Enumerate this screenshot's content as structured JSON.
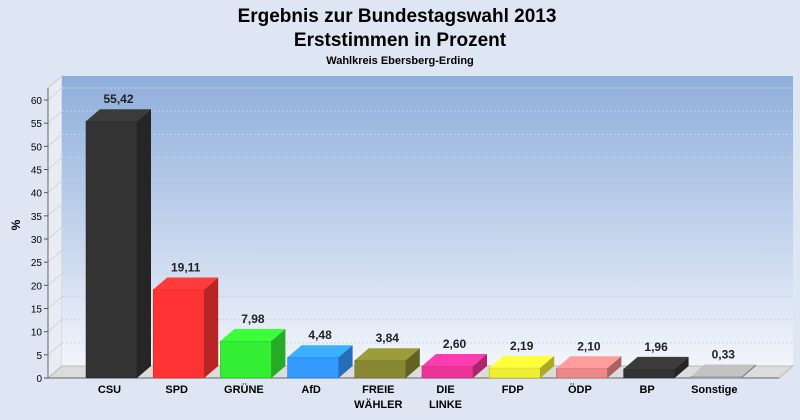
{
  "chart_data": {
    "type": "bar",
    "title": "Ergebnis zur Bundestagswahl 2013",
    "title2": "Erststimmen in Prozent",
    "subtitle": "Wahlkreis Ebersberg-Erding",
    "ylabel": "%",
    "ylim": [
      0,
      60
    ],
    "yticks": [
      "0",
      "5",
      "10",
      "15",
      "20",
      "25",
      "30",
      "35",
      "40",
      "45",
      "50",
      "55",
      "60"
    ],
    "categories": [
      {
        "line1": "CSU",
        "line2": ""
      },
      {
        "line1": "SPD",
        "line2": ""
      },
      {
        "line1": "GRÜNE",
        "line2": ""
      },
      {
        "line1": "AfD",
        "line2": ""
      },
      {
        "line1": "FREIE",
        "line2": "WÄHLER"
      },
      {
        "line1": "DIE",
        "line2": "LINKE"
      },
      {
        "line1": "FDP",
        "line2": ""
      },
      {
        "line1": "ÖDP",
        "line2": ""
      },
      {
        "line1": "BP",
        "line2": ""
      },
      {
        "line1": "Sonstige",
        "line2": ""
      }
    ],
    "values": [
      55.42,
      19.11,
      7.98,
      4.48,
      3.84,
      2.6,
      2.19,
      2.1,
      1.96,
      0.33
    ],
    "value_labels": [
      "55,42",
      "19,11",
      "7,98",
      "4,48",
      "3,84",
      "2,60",
      "2,19",
      "2,10",
      "1,96",
      "0,33"
    ],
    "colors": [
      "#333333",
      "#ff3333",
      "#33ee33",
      "#3399ff",
      "#888833",
      "#ee3399",
      "#eeee33",
      "#ee8888",
      "#333333",
      "#aaaaaa"
    ],
    "grid": true,
    "legend": "none"
  }
}
